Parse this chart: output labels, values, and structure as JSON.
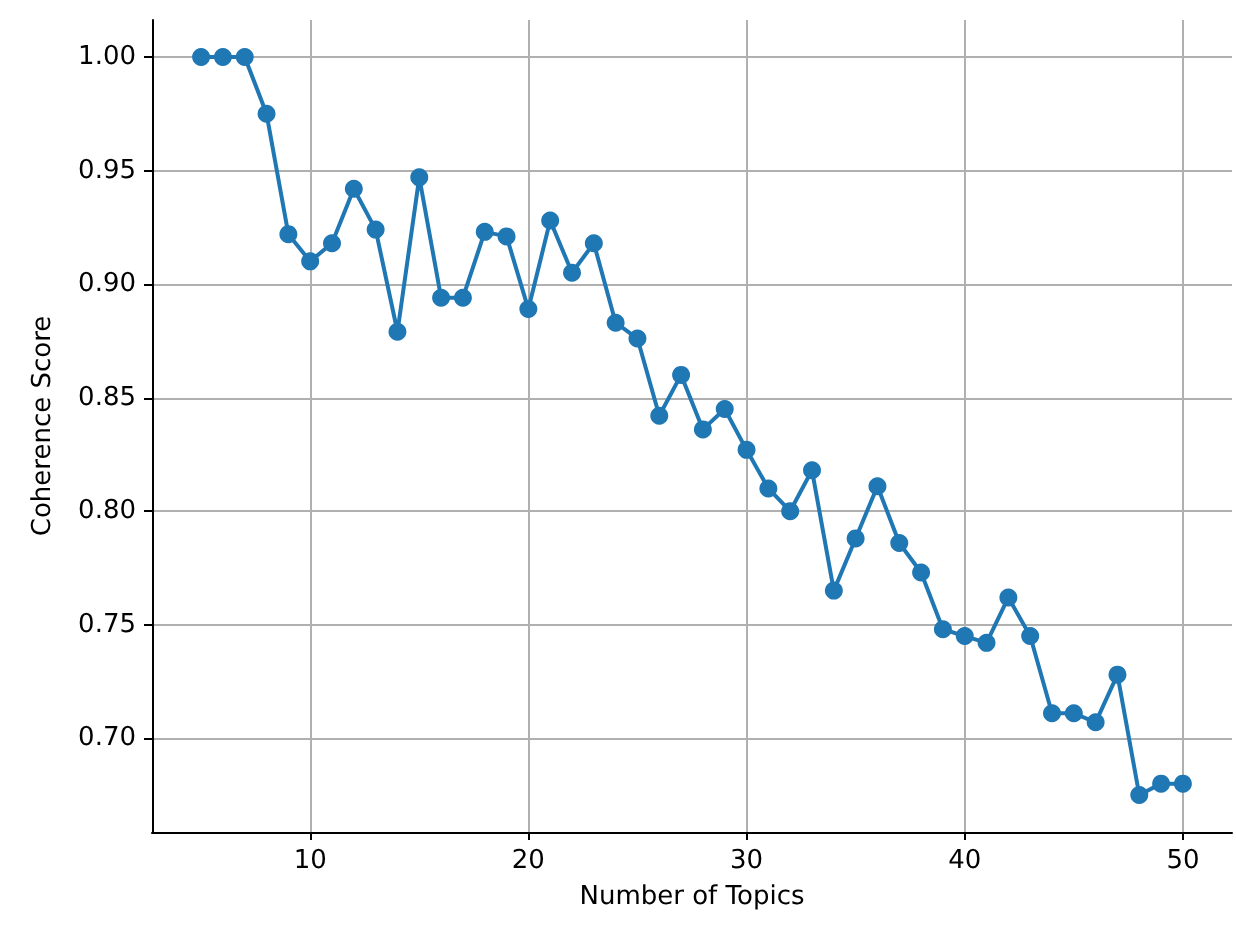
{
  "chart_data": {
    "type": "line",
    "xlabel": "Number of Topics",
    "ylabel": "Coherence Score",
    "x": [
      5,
      6,
      7,
      8,
      9,
      10,
      11,
      12,
      13,
      14,
      15,
      16,
      17,
      18,
      19,
      20,
      21,
      22,
      23,
      24,
      25,
      26,
      27,
      28,
      29,
      30,
      31,
      32,
      33,
      34,
      35,
      36,
      37,
      38,
      39,
      40,
      41,
      42,
      43,
      44,
      45,
      46,
      47,
      48,
      49,
      50
    ],
    "series": [
      {
        "color": "#1f77b4",
        "values": [
          1.0,
          1.0,
          1.0,
          0.975,
          0.922,
          0.91,
          0.918,
          0.942,
          0.924,
          0.879,
          0.947,
          0.894,
          0.894,
          0.923,
          0.921,
          0.889,
          0.928,
          0.905,
          0.918,
          0.883,
          0.876,
          0.842,
          0.86,
          0.836,
          0.845,
          0.827,
          0.81,
          0.8,
          0.818,
          0.765,
          0.788,
          0.811,
          0.786,
          0.773,
          0.748,
          0.745,
          0.742,
          0.762,
          0.745,
          0.711,
          0.711,
          0.707,
          0.728,
          0.675,
          0.68,
          0.68
        ]
      }
    ],
    "xlim": [
      2.75,
      52.25
    ],
    "xticks": [
      10,
      20,
      30,
      40,
      50
    ],
    "ylim": [
      0.6587,
      1.0163
    ],
    "yticks": [
      {
        "value": 0.7,
        "label": "0.70"
      },
      {
        "value": 0.75,
        "label": "0.75"
      },
      {
        "value": 0.8,
        "label": "0.80"
      },
      {
        "value": 0.85,
        "label": "0.85"
      },
      {
        "value": 0.9,
        "label": "0.90"
      },
      {
        "value": 0.95,
        "label": "0.95"
      },
      {
        "value": 1.0,
        "label": "1.00"
      }
    ],
    "grid": true,
    "marker": "circle",
    "line_style": "solid"
  }
}
